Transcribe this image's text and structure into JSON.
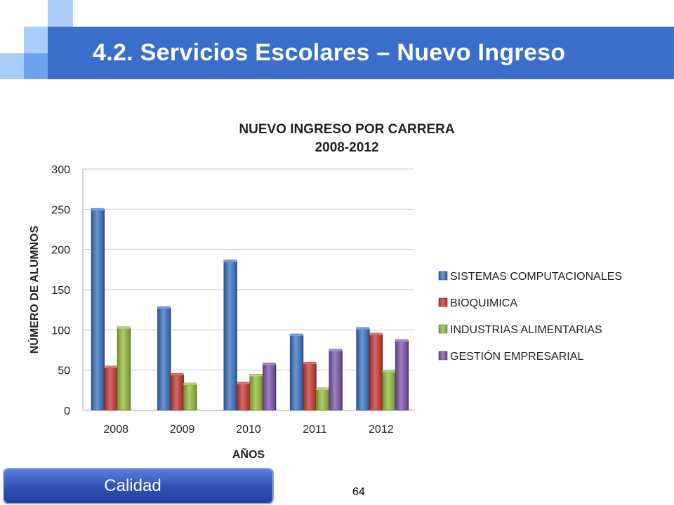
{
  "slide": {
    "title": "4.2. Servicios Escolares – Nuevo Ingreso",
    "footer_button": "Calidad",
    "page_number": "64"
  },
  "colors": {
    "title_bar": "#3a6fc9",
    "deco_light": "#7fb2f5",
    "deco_medium": "#3a6fc9"
  },
  "chart_data": {
    "type": "bar",
    "title": "NUEVO INGRESO POR CARRERA",
    "subtitle": "2008-2012",
    "xlabel": "AÑOS",
    "ylabel": "NÚMERO DE ALUMNOS",
    "categories": [
      "2008",
      "2009",
      "2010",
      "2011",
      "2012"
    ],
    "ylim": [
      0,
      300
    ],
    "yticks": [
      0,
      50,
      100,
      150,
      200,
      250,
      300
    ],
    "grid": true,
    "legend_position": "right",
    "series": [
      {
        "name": "SISTEMAS COMPUTACIONALES",
        "color": "#3b73c4",
        "values": [
          251,
          129,
          187,
          95,
          103
        ]
      },
      {
        "name": "BIOQUIMICA",
        "color": "#c93a34",
        "values": [
          55,
          46,
          35,
          60,
          96
        ]
      },
      {
        "name": "INDUSTRIAS ALIMENTARIAS",
        "color": "#96bd3c",
        "values": [
          104,
          34,
          45,
          28,
          50
        ]
      },
      {
        "name": "GESTIÓN EMPRESARIAL",
        "color": "#7d55ab",
        "values": [
          null,
          null,
          59,
          76,
          88
        ]
      }
    ]
  }
}
